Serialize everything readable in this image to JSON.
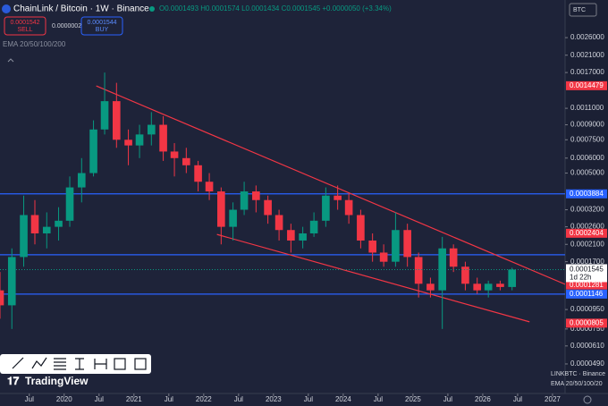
{
  "header": {
    "symbol": "ChainLink / Bitcoin · 1W · Binance",
    "ohlc": "O0.0001493 H0.0001574 L0.0001434 C0.0001545 +0.0000050 (+3.34%)",
    "sell_price": "0.0001542",
    "sell": "SELL",
    "spread": "0.0000002",
    "buy_price": "0.0001544",
    "buy": "BUY",
    "indicator": "EMA 20/50/100/200",
    "currency": "BTC"
  },
  "footer": {
    "logo": "TradingView",
    "symbol": "LINKBTC · Binance",
    "indicator": "EMA 20/50/100/20"
  },
  "chart_data": {
    "type": "candlestick",
    "log_scale": true,
    "up_color": "#089981",
    "down_color": "#f23645",
    "x": [
      2019.08,
      2019.25,
      2019.42,
      2019.58,
      2019.75,
      2019.92,
      2020.08,
      2020.25,
      2020.42,
      2020.58,
      2020.75,
      2020.92,
      2021.08,
      2021.25,
      2021.42,
      2021.58,
      2021.75,
      2021.92,
      2022.08,
      2022.25,
      2022.42,
      2022.58,
      2022.75,
      2022.92,
      2023.08,
      2023.25,
      2023.42,
      2023.58,
      2023.75,
      2023.92,
      2024.08,
      2024.25,
      2024.42,
      2024.58,
      2024.75,
      2024.92,
      2025.08,
      2025.25,
      2025.42,
      2025.58,
      2025.75,
      2025.92,
      2026.08,
      2026.25,
      2026.42
    ],
    "open": [
      0.00012,
      0.0001,
      0.00018,
      0.0003,
      0.00024,
      0.00026,
      0.00028,
      0.00042,
      0.0005,
      0.00085,
      0.0012,
      0.00075,
      0.0007,
      0.0008,
      0.0009,
      0.00065,
      0.0006,
      0.00055,
      0.00045,
      0.0004,
      0.00026,
      0.00032,
      0.0004,
      0.00036,
      0.0003,
      0.00025,
      0.00022,
      0.00024,
      0.00028,
      0.00038,
      0.00036,
      0.0003,
      0.00022,
      0.00019,
      0.00017,
      0.00025,
      0.00018,
      0.00013,
      0.00012,
      0.0002,
      0.00016,
      0.00013,
      0.00012,
      0.00013,
      0.000125
    ],
    "high": [
      0.00015,
      0.0002,
      0.00038,
      0.00036,
      0.00031,
      0.00033,
      0.00048,
      0.0006,
      0.00095,
      0.0017,
      0.0015,
      0.00085,
      0.0009,
      0.00105,
      0.001,
      0.00072,
      0.00068,
      0.00058,
      0.0005,
      0.00042,
      0.00035,
      0.00045,
      0.00043,
      0.00038,
      0.00032,
      0.00027,
      0.00026,
      0.00031,
      0.00042,
      0.00043,
      0.00039,
      0.00032,
      0.00024,
      0.00021,
      0.00031,
      0.00027,
      0.00019,
      0.00014,
      0.00023,
      0.00021,
      0.00017,
      0.00014,
      0.000135,
      0.000135,
      0.000158
    ],
    "low": [
      8.5e-05,
      7.5e-05,
      0.00016,
      0.00021,
      0.0002,
      0.00022,
      0.00026,
      0.00035,
      0.00048,
      0.0008,
      0.00068,
      0.00055,
      0.0006,
      0.0007,
      0.00058,
      0.00048,
      0.0005,
      0.0004,
      0.00036,
      0.00021,
      0.00022,
      0.0003,
      0.00031,
      0.00027,
      0.00022,
      0.00019,
      0.0002,
      0.00023,
      0.00026,
      0.00032,
      0.00027,
      0.0002,
      0.00017,
      0.00016,
      0.00016,
      0.00016,
      0.00011,
      0.00011,
      7.5e-05,
      0.00015,
      0.00012,
      0.000115,
      0.00011,
      0.00012,
      0.00012
    ],
    "close": [
      0.0001,
      0.00018,
      0.0003,
      0.00024,
      0.00026,
      0.00028,
      0.00042,
      0.0005,
      0.00085,
      0.0012,
      0.00075,
      0.0007,
      0.0008,
      0.0009,
      0.00065,
      0.0006,
      0.00055,
      0.00045,
      0.0004,
      0.00026,
      0.00032,
      0.0004,
      0.00036,
      0.0003,
      0.00025,
      0.00022,
      0.00024,
      0.00028,
      0.00038,
      0.00036,
      0.0003,
      0.00022,
      0.00019,
      0.00017,
      0.00025,
      0.00018,
      0.00013,
      0.00012,
      0.0002,
      0.00016,
      0.00013,
      0.00012,
      0.00013,
      0.000125,
      0.0001545
    ],
    "xlim": [
      2019.08,
      2027.18
    ],
    "xticks": [
      {
        "value": 2019.5,
        "label": "Jul"
      },
      2020,
      {
        "value": 2020.5,
        "label": "Jul"
      },
      2021,
      {
        "value": 2021.5,
        "label": "Jul"
      },
      2022,
      {
        "value": 2022.5,
        "label": "Jul"
      },
      2023,
      {
        "value": 2023.5,
        "label": "Jul"
      },
      2024,
      {
        "value": 2024.5,
        "label": "Jul"
      },
      2025,
      {
        "value": 2025.5,
        "label": "Jul"
      },
      2026,
      {
        "value": 2026.5,
        "label": "Jul"
      },
      2027
    ],
    "ylim": [
      3.42e-05,
      0.00411
    ],
    "yticks": [
      {
        "value": 0.0026,
        "label": "0.0026000"
      },
      {
        "value": 0.0021,
        "label": "0.0021000"
      },
      {
        "value": 0.0017,
        "label": "0.0017000"
      },
      {
        "value": 0.0011,
        "label": "0.0011000"
      },
      {
        "value": 0.0009,
        "label": "0.0009000"
      },
      {
        "value": 0.00075,
        "label": "0.0007500"
      },
      {
        "value": 0.0006,
        "label": "0.0006000"
      },
      {
        "value": 0.0005,
        "label": "0.0005000"
      },
      {
        "value": 0.00032,
        "label": "0.0003200"
      },
      {
        "value": 0.00026,
        "label": "0.0002600"
      },
      {
        "value": 0.00021,
        "label": "0.0002100"
      },
      {
        "value": 0.00017,
        "label": "0.0001700"
      },
      {
        "value": 9.5e-05,
        "label": "0.0000950"
      },
      {
        "value": 7.5e-05,
        "label": "0.0000750"
      },
      {
        "value": 6.1e-05,
        "label": "0.0000610"
      },
      {
        "value": 4.9e-05,
        "label": "0.0000490"
      }
    ],
    "trend_lines": [
      {
        "color": "#f23645",
        "x": [
          2020.46,
          2027.18
        ],
        "y": [
          0.001444,
          0.0001292
        ]
      },
      {
        "color": "#f23645",
        "x": [
          2022.19,
          2026.67
        ],
        "y": [
          0.000237,
          8.18e-05
        ]
      }
    ],
    "hlines": [
      {
        "color": "#2962ff",
        "value": 0.0003884
      },
      {
        "color": "#2962ff",
        "value": 0.000185
      },
      {
        "color": "#2962ff",
        "value": 0.0001146
      }
    ],
    "price_labels": [
      {
        "value": 0.0014479,
        "label": "0.0014479",
        "color": "#f23645"
      },
      {
        "value": 0.0003884,
        "label": "0.0003884",
        "color": "#2962ff"
      },
      {
        "value": 0.0002404,
        "label": "0.0002404",
        "color": "#f23645"
      },
      {
        "value": 0.0001281,
        "label": "0.0001281",
        "color": "#f23645"
      },
      {
        "value": 0.0001146,
        "label": "0.0001146",
        "color": "#2962ff"
      },
      {
        "value": 8.05e-05,
        "label": "0.0000805",
        "color": "#f23645"
      }
    ],
    "last_price": {
      "value": 0.0001545,
      "label": "0.0001545",
      "countdown": "1d 22h"
    }
  }
}
